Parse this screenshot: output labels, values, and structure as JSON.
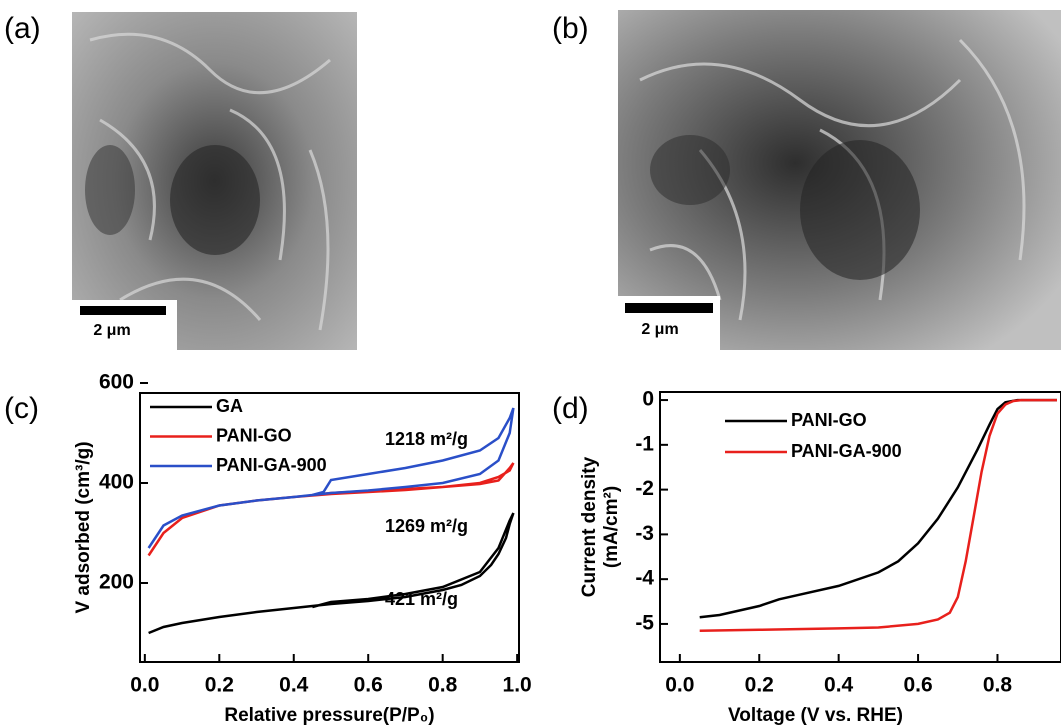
{
  "panel_labels": [
    "(a)",
    "(b)",
    "(c)",
    "(d)"
  ],
  "scale_bars": [
    "2 μm",
    "2 μm"
  ],
  "chart_data": [
    {
      "type": "line",
      "xlabel": "Relative pressure(P/P₀)",
      "ylabel": "V adsorbed (cm³/g)",
      "xlim": [
        -0.013,
        1.005
      ],
      "ylim": [
        42,
        580
      ],
      "xticks": [
        {
          "value": 0,
          "label": "0.0"
        },
        0.2,
        0.4,
        0.6,
        0.8,
        {
          "value": 1,
          "label": "1.0"
        }
      ],
      "yticks": [
        200,
        400,
        600
      ],
      "annotations": [
        "1218 m²/g",
        "1269 m²/g",
        "421 m²/g"
      ],
      "legend": "upper left",
      "series": [
        {
          "name": "GA",
          "color": "#000000",
          "x": [
            0.01,
            0.05,
            0.1,
            0.2,
            0.3,
            0.4,
            0.5,
            0.6,
            0.7,
            0.8,
            0.85,
            0.9,
            0.93,
            0.95,
            0.97,
            0.98,
            0.99,
            0.98,
            0.95,
            0.9,
            0.8,
            0.7,
            0.6,
            0.5,
            0.45
          ],
          "values": [
            100,
            112,
            120,
            132,
            142,
            150,
            158,
            164,
            172,
            186,
            196,
            214,
            236,
            258,
            290,
            318,
            340,
            325,
            270,
            222,
            192,
            178,
            168,
            162,
            152
          ]
        },
        {
          "name": "PANI-GO",
          "color": "#e8201c",
          "x": [
            0.01,
            0.05,
            0.1,
            0.2,
            0.3,
            0.4,
            0.5,
            0.6,
            0.7,
            0.8,
            0.9,
            0.95,
            0.98,
            0.99,
            0.98,
            0.95,
            0.9,
            0.8,
            0.7,
            0.6,
            0.5,
            0.45
          ],
          "values": [
            255,
            300,
            330,
            355,
            365,
            372,
            378,
            382,
            386,
            392,
            400,
            412,
            425,
            440,
            430,
            405,
            398,
            392,
            388,
            384,
            380,
            376
          ]
        },
        {
          "name": "PANI-GA-900",
          "color": "#2a4fc8",
          "x": [
            0.01,
            0.05,
            0.1,
            0.2,
            0.3,
            0.4,
            0.5,
            0.6,
            0.7,
            0.8,
            0.9,
            0.95,
            0.98,
            0.99,
            0.98,
            0.95,
            0.9,
            0.8,
            0.7,
            0.6,
            0.5,
            0.48,
            0.45
          ],
          "values": [
            270,
            315,
            335,
            355,
            365,
            372,
            380,
            385,
            392,
            400,
            418,
            445,
            500,
            550,
            530,
            490,
            465,
            445,
            430,
            418,
            406,
            382,
            376
          ]
        }
      ]
    },
    {
      "type": "line",
      "xlabel": "Voltage (V vs. RHE)",
      "ylabel": [
        "Current density",
        "(mA/cm²)"
      ],
      "xlim": [
        -0.05,
        0.96
      ],
      "ylim": [
        -5.85,
        0.18
      ],
      "xticks": [
        {
          "value": 0,
          "label": "0.0"
        },
        0.2,
        0.4,
        0.6,
        0.8
      ],
      "yticks": [
        0,
        -1,
        -2,
        -3,
        -4,
        -5
      ],
      "legend": "upper left",
      "series": [
        {
          "name": "PANI-GO",
          "color": "#000000",
          "x": [
            0.05,
            0.1,
            0.2,
            0.25,
            0.3,
            0.4,
            0.5,
            0.55,
            0.6,
            0.65,
            0.7,
            0.75,
            0.78,
            0.8,
            0.82,
            0.85,
            0.9,
            0.95
          ],
          "values": [
            -4.85,
            -4.8,
            -4.6,
            -4.45,
            -4.35,
            -4.15,
            -3.85,
            -3.6,
            -3.2,
            -2.65,
            -1.95,
            -1.1,
            -0.55,
            -0.2,
            -0.05,
            0,
            0,
            0
          ]
        },
        {
          "name": "PANI-GA-900",
          "color": "#e8201c",
          "x": [
            0.05,
            0.2,
            0.4,
            0.5,
            0.6,
            0.65,
            0.68,
            0.7,
            0.72,
            0.74,
            0.76,
            0.78,
            0.8,
            0.82,
            0.84,
            0.86,
            0.9,
            0.95
          ],
          "values": [
            -5.15,
            -5.13,
            -5.1,
            -5.08,
            -5.0,
            -4.9,
            -4.75,
            -4.4,
            -3.6,
            -2.6,
            -1.6,
            -0.8,
            -0.3,
            -0.1,
            -0.02,
            0,
            0,
            0
          ]
        }
      ]
    }
  ]
}
